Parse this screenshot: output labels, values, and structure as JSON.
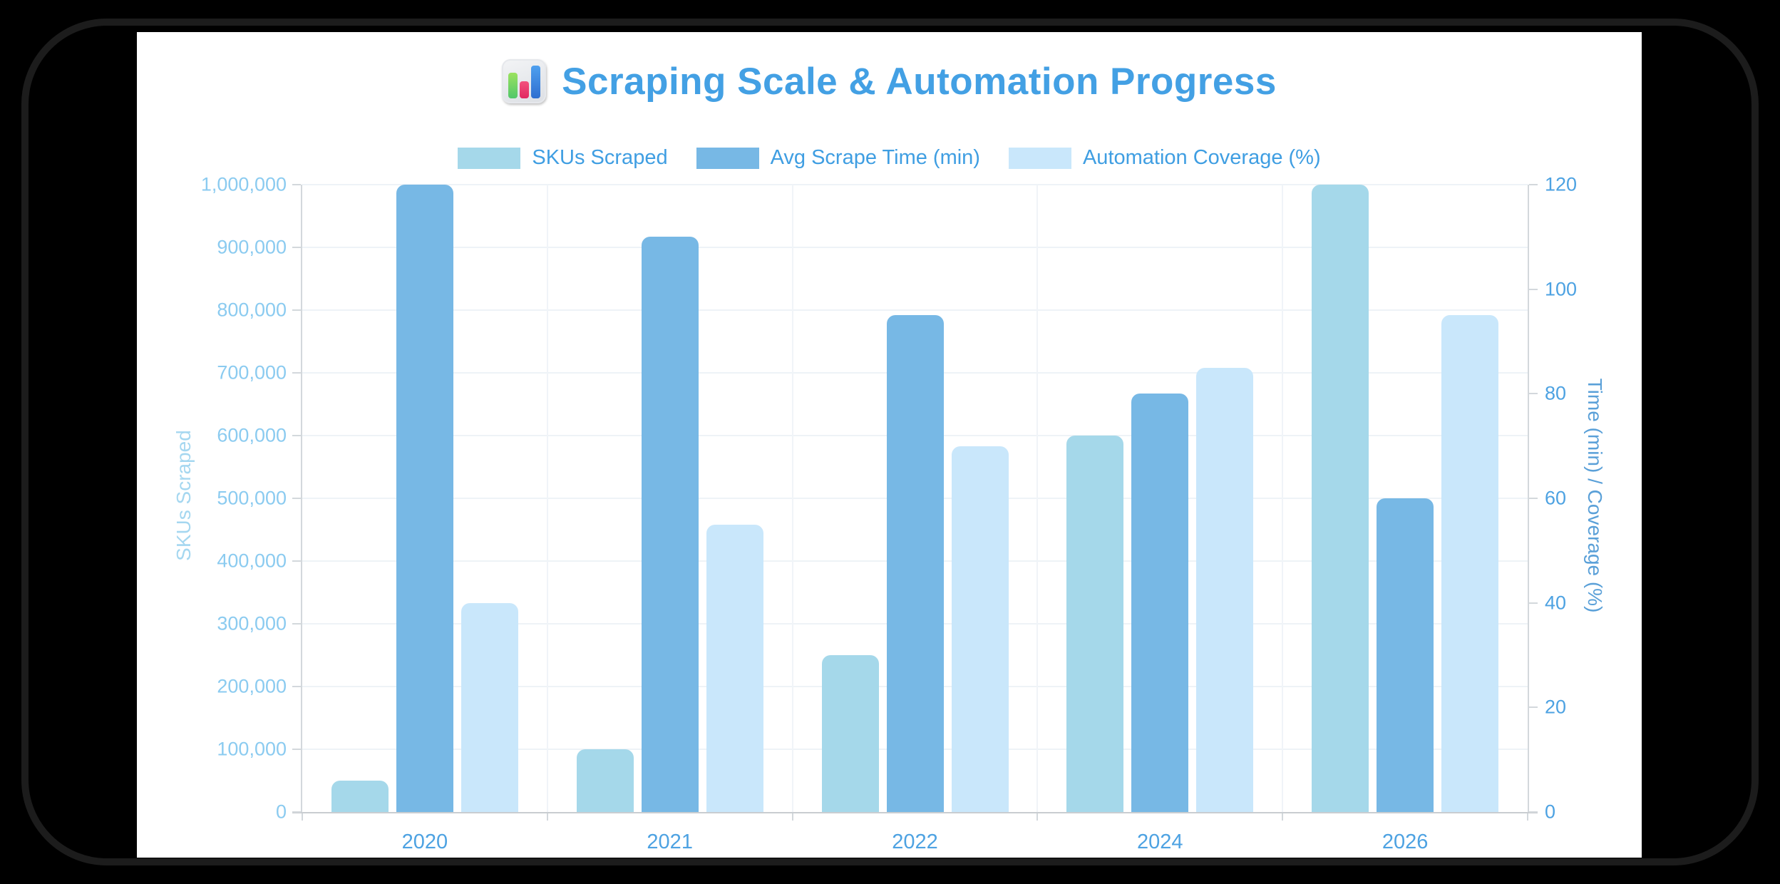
{
  "title": {
    "text": "Scraping Scale & Automation Progress",
    "icon": "bar-chart-emoji"
  },
  "chart_data": {
    "type": "bar",
    "title": "Scraping Scale & Automation Progress",
    "categories": [
      "2020",
      "2021",
      "2022",
      "2024",
      "2026"
    ],
    "series": [
      {
        "name": "SKUs Scraped",
        "axis": "left",
        "color": "#a5d8ea",
        "values": [
          50000,
          100000,
          250000,
          600000,
          1000000
        ]
      },
      {
        "name": "Avg Scrape Time (min)",
        "axis": "right",
        "color": "#77b8e5",
        "values": [
          120,
          110,
          95,
          80,
          60
        ]
      },
      {
        "name": "Automation Coverage (%)",
        "axis": "right",
        "color": "#c9e7fb",
        "values": [
          40,
          55,
          70,
          85,
          95
        ]
      }
    ],
    "left_axis": {
      "label": "SKUs Scraped",
      "min": 0,
      "max": 1000000,
      "tick_step": 100000,
      "tick_labels": [
        "0",
        "100,000",
        "200,000",
        "300,000",
        "400,000",
        "500,000",
        "600,000",
        "700,000",
        "800,000",
        "900,000",
        "1,000,000"
      ]
    },
    "right_axis": {
      "label": "Time (min) / Coverage (%)",
      "min": 0,
      "max": 120,
      "tick_step": 20,
      "tick_labels": [
        "0",
        "20",
        "40",
        "60",
        "80",
        "100",
        "120"
      ]
    },
    "grid": true,
    "legend_position": "top"
  },
  "colors": {
    "title": "#43a0e4",
    "legend_text": "#3f9ee2",
    "left_ticks": "#8bcbf0",
    "right_ticks": "#4da2e2",
    "x_labels": "#4da2e2",
    "background": "#ffffff",
    "page_background": "#000000"
  }
}
